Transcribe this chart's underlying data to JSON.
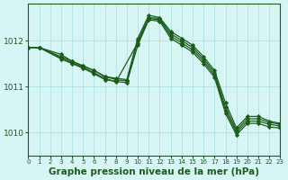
{
  "background_color": "#d8f5f5",
  "grid_color": "#aadddd",
  "line_color": "#1a5c1a",
  "marker_color": "#1a5c1a",
  "xlabel": "Graphe pression niveau de la mer (hPa)",
  "xlabel_fontsize": 7.5,
  "xlim": [
    0,
    23
  ],
  "ylim": [
    1009.5,
    1012.8
  ],
  "yticks": [
    1010,
    1011,
    1012
  ],
  "xticks": [
    0,
    1,
    2,
    3,
    4,
    5,
    6,
    7,
    8,
    9,
    10,
    11,
    12,
    13,
    14,
    15,
    16,
    17,
    18,
    19,
    20,
    21,
    22,
    23
  ],
  "series": [
    {
      "x": [
        0,
        1,
        3,
        4,
        5,
        6,
        7,
        8,
        9,
        10,
        11,
        12,
        13,
        14,
        15,
        16,
        17,
        18,
        19,
        20,
        21,
        22,
        23
      ],
      "y": [
        1011.85,
        1011.85,
        1011.7,
        1011.55,
        1011.45,
        1011.35,
        1011.22,
        1011.18,
        1011.15,
        1012.05,
        1012.55,
        1012.5,
        1012.2,
        1012.05,
        1011.9,
        1011.65,
        1011.35,
        1010.65,
        1010.1,
        1010.35,
        1010.35,
        1010.25,
        1010.2
      ]
    },
    {
      "x": [
        0,
        1,
        3,
        4,
        5,
        6,
        7,
        8,
        9,
        10,
        11,
        12,
        13,
        14,
        15,
        16,
        17,
        18,
        19,
        20,
        21,
        22,
        23
      ],
      "y": [
        1011.85,
        1011.85,
        1011.65,
        1011.55,
        1011.45,
        1011.35,
        1011.22,
        1011.15,
        1011.12,
        1012.0,
        1012.5,
        1012.48,
        1012.15,
        1012.0,
        1011.85,
        1011.6,
        1011.3,
        1010.55,
        1010.05,
        1010.3,
        1010.3,
        1010.22,
        1010.18
      ]
    },
    {
      "x": [
        0,
        1,
        3,
        4,
        5,
        6,
        7,
        8,
        10,
        11,
        12,
        13,
        14,
        15,
        16,
        17,
        18,
        19,
        20,
        21,
        22,
        23
      ],
      "y": [
        1011.85,
        1011.85,
        1011.62,
        1011.52,
        1011.42,
        1011.3,
        1011.18,
        1011.1,
        1011.95,
        1012.48,
        1012.45,
        1012.1,
        1011.95,
        1011.8,
        1011.55,
        1011.25,
        1010.48,
        1010.0,
        1010.25,
        1010.25,
        1010.18,
        1010.14
      ]
    },
    {
      "x": [
        0,
        1,
        3,
        4,
        5,
        6,
        7,
        9,
        10,
        11,
        12,
        13,
        14,
        15,
        16,
        17,
        18,
        19,
        20,
        21,
        22,
        23
      ],
      "y": [
        1011.85,
        1011.85,
        1011.6,
        1011.5,
        1011.4,
        1011.28,
        1011.15,
        1011.08,
        1011.9,
        1012.45,
        1012.42,
        1012.05,
        1011.9,
        1011.75,
        1011.5,
        1011.2,
        1010.42,
        1009.95,
        1010.2,
        1010.2,
        1010.12,
        1010.1
      ]
    }
  ]
}
